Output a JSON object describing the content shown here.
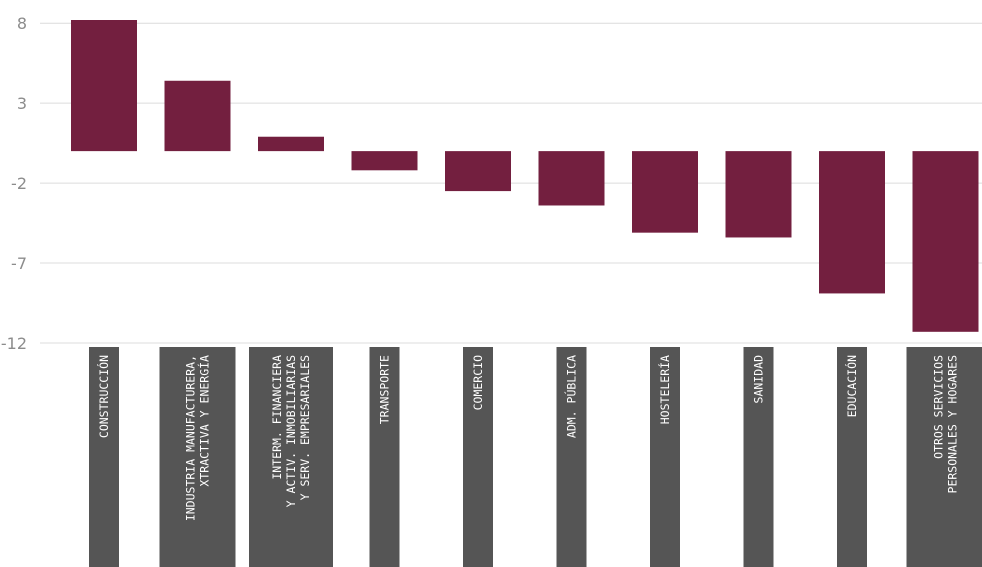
{
  "chart_data": {
    "type": "bar",
    "categories": [
      "CONSTRUCCIÓN",
      "INDUSTRIA MANUFACTURERA,\nXTRACTIVA Y ENERGÍA",
      "INTERM. FINANCIERA\nY ACTIV. INMOBILIARIAS\nY SERV. EMPRESARIALES",
      "TRANSPORTE",
      "COMERCIO",
      "ADM. PÚBLICA",
      "HOSTELERÍA",
      "SANIDAD",
      "EDUCACIÓN",
      "OTROS SERVICIOS\nPERSONALES Y HOGARES"
    ],
    "values": [
      8.2,
      4.4,
      0.9,
      -1.2,
      -2.5,
      -3.4,
      -5.1,
      -5.4,
      -8.9,
      -11.3
    ],
    "yticks": [
      8,
      3,
      -2,
      -7,
      -12
    ],
    "ylim": [
      -12,
      8.2
    ],
    "grid": true,
    "title": "",
    "xlabel": "",
    "ylabel": "",
    "colors": {
      "bar": "#731f3f",
      "label_box": "#555555",
      "grid": "#dcdcdc",
      "tick_text": "#8c8c8c"
    }
  }
}
